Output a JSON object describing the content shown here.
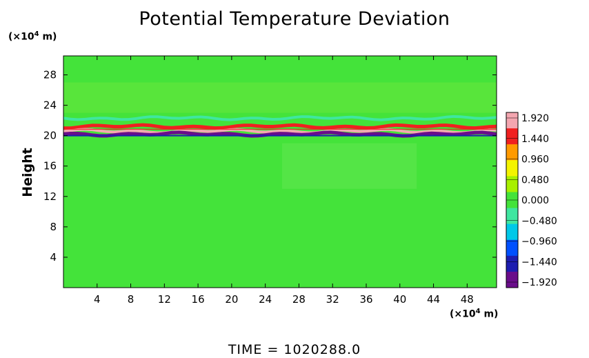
{
  "title": "Potential Temperature Deviation",
  "time_label": "TIME  =  1020288.0",
  "chart_data": {
    "type": "heatmap",
    "title": "Potential Temperature Deviation",
    "xlabel": "",
    "ylabel": "Height",
    "x_unit": "(×10⁴ m)",
    "y_unit": "(×10⁴ m)",
    "xlim": [
      0,
      51.5
    ],
    "ylim": [
      0,
      30.5
    ],
    "xticks": [
      4,
      8,
      12,
      16,
      20,
      24,
      28,
      32,
      36,
      40,
      44,
      48
    ],
    "yticks": [
      4,
      8,
      12,
      16,
      20,
      24,
      28
    ],
    "colorbar": {
      "labels": [
        "1.920",
        "1.440",
        "0.960",
        "0.480",
        "0.000",
        "−0.480",
        "−0.960",
        "−1.440",
        "−1.920"
      ],
      "min": -1.92,
      "max": 1.92,
      "colors": [
        "#6a0d8a",
        "#1d1db0",
        "#0050ff",
        "#00c8e8",
        "#3fe6a0",
        "#44e33a",
        "#a8f000",
        "#f4f400",
        "#ff9a00",
        "#f02020",
        "#f4a6b0"
      ]
    },
    "background_value": 0.0,
    "bands": [
      {
        "y_center": 22.3,
        "value": -0.5,
        "note": "upper cyan band"
      },
      {
        "y_center": 21.2,
        "value": 1.4,
        "note": "orange/yellow band"
      },
      {
        "y_center": 20.6,
        "value": 1.9,
        "note": "pink band"
      },
      {
        "y_center": 20.2,
        "value": -1.8,
        "note": "dark blue band"
      }
    ],
    "grid": false,
    "legend": "right"
  }
}
